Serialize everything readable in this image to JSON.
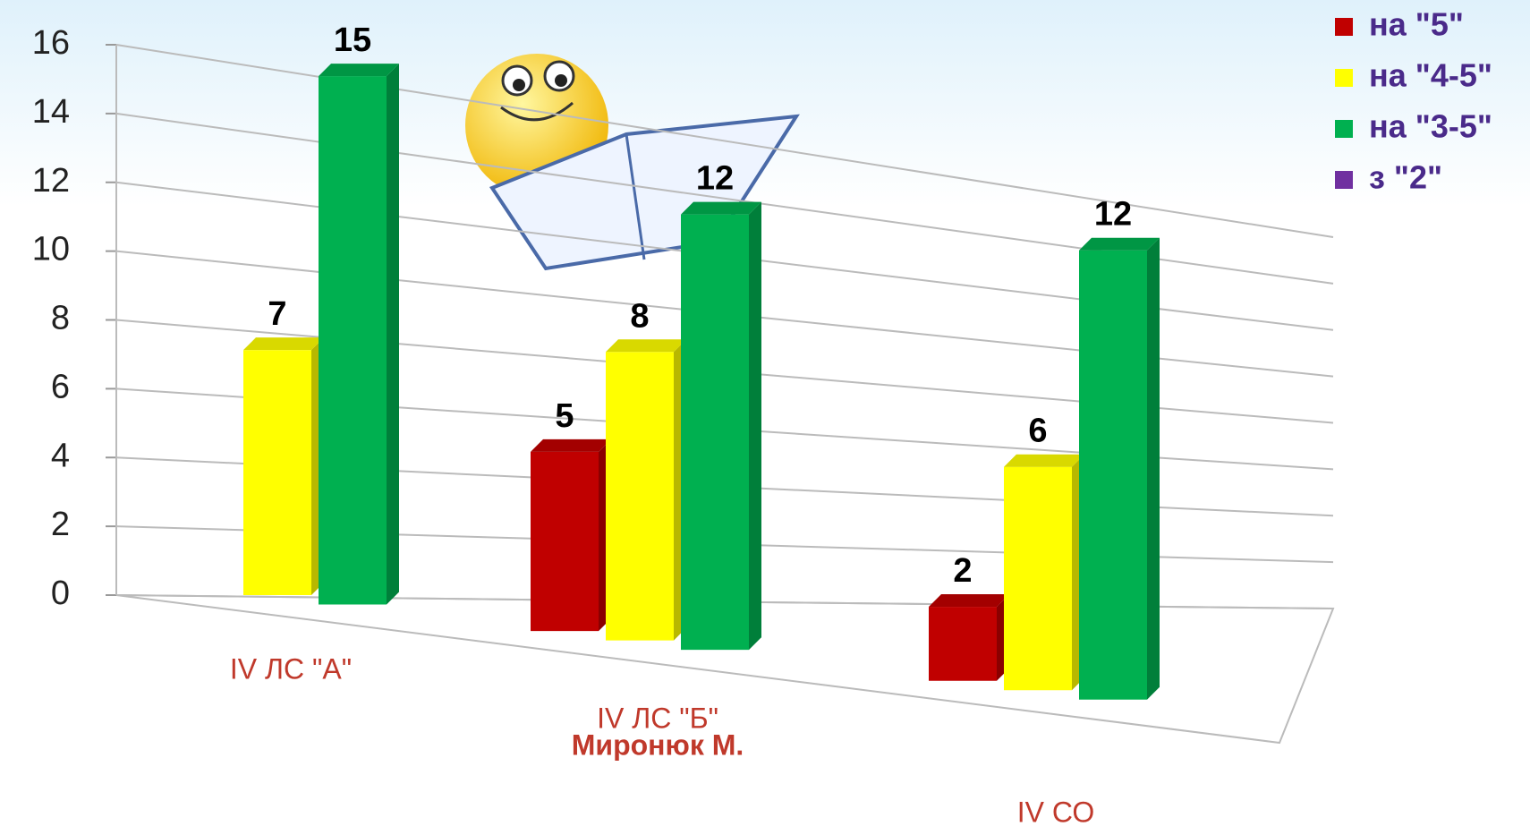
{
  "chart_data": {
    "type": "bar",
    "categories": [
      [
        "IV ЛС \"А\""
      ],
      [
        "IV ЛС \"Б\"",
        "Миронюк М."
      ],
      [
        "IV СО"
      ]
    ],
    "series": [
      {
        "name": "на \"5\"",
        "color": "#c00000",
        "values": [
          null,
          5,
          2
        ]
      },
      {
        "name": "на \"4-5\"",
        "color": "#ffff00",
        "values": [
          7,
          8,
          6
        ]
      },
      {
        "name": "на \"3-5\"",
        "color": "#00b050",
        "values": [
          15,
          12,
          12
        ]
      },
      {
        "name": "з \"2\"",
        "color": "#7030a0",
        "values": [
          null,
          null,
          null
        ]
      }
    ],
    "ylim": [
      0,
      16
    ],
    "yticks": [
      0,
      2,
      4,
      6,
      8,
      10,
      12,
      14,
      16
    ],
    "grid": true,
    "legend": "top-right"
  }
}
